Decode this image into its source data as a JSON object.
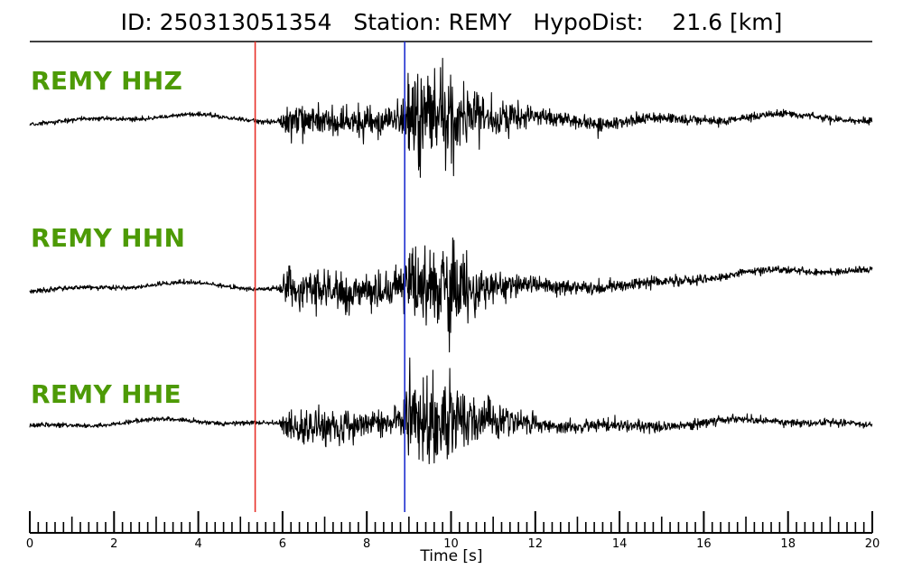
{
  "chart_data": {
    "type": "line",
    "title": "ID: 250313051354   Station: REMY   HypoDist:    21.6 [km]",
    "xlabel": "Time [s]",
    "ylabel": "",
    "xlim": [
      0,
      20
    ],
    "grid": false,
    "x_ticks": [
      "0",
      "2",
      "4",
      "6",
      "8",
      "10",
      "12",
      "14",
      "16",
      "18",
      "20"
    ],
    "minor_tick_step": 0.2,
    "label_color": "#4d9a06",
    "series": [
      {
        "name": "REMY HHZ",
        "color": "#000000",
        "seed": 11
      },
      {
        "name": "REMY HHN",
        "color": "#000000",
        "seed": 23
      },
      {
        "name": "REMY HHE",
        "color": "#000000",
        "seed": 37
      }
    ],
    "picks": [
      {
        "time": 5.35,
        "color": "#e8312a"
      },
      {
        "time": 8.9,
        "color": "#1f2fd0"
      }
    ]
  }
}
